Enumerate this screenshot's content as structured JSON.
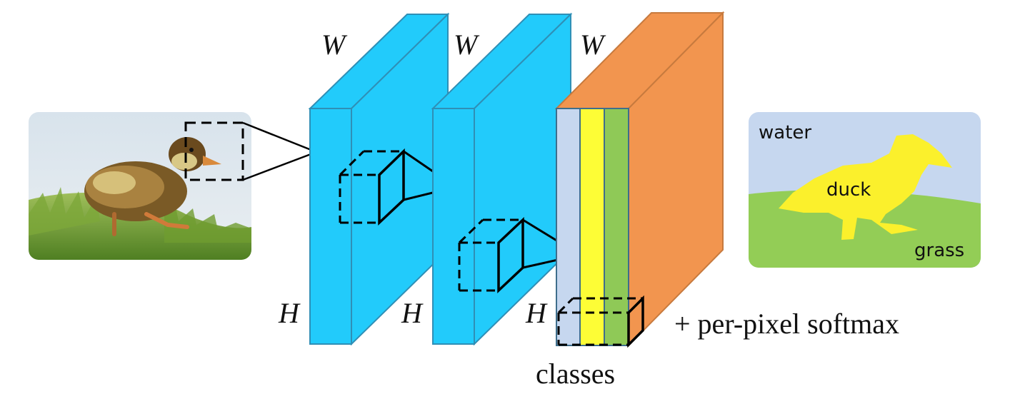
{
  "layers": [
    {
      "width_label": "W",
      "height_label": "H"
    },
    {
      "width_label": "W",
      "height_label": "H"
    },
    {
      "width_label": "W",
      "height_label": "H"
    }
  ],
  "output_layer": {
    "bottom_label": "classes",
    "softmax_label": "+ per-pixel softmax"
  },
  "segmentation": {
    "labels": {
      "water": "water",
      "duck": "duck",
      "grass": "grass"
    }
  },
  "colors": {
    "feature_map": "#22cbfb",
    "feature_map_edge": "#2f8fb6",
    "output_block": "#f2954f",
    "class_1": "#c6d7ef",
    "class_2": "#fdfd36",
    "class_3": "#8fc957",
    "seg_water": "#c6d7ef",
    "seg_duck": "#fbf02c",
    "seg_grass": "#93cd56"
  }
}
